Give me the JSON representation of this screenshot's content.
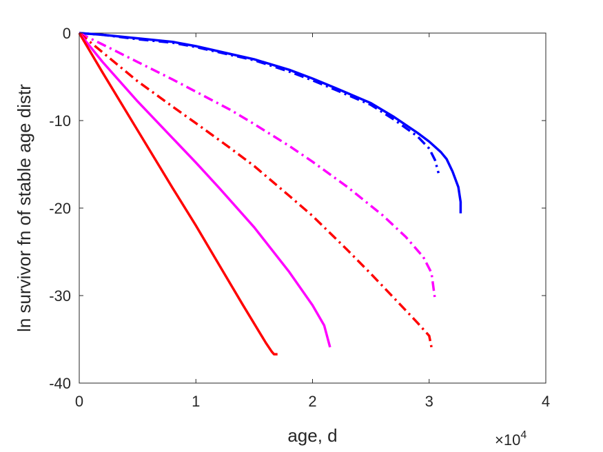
{
  "chart_data": {
    "type": "line",
    "xlabel": "age, d",
    "ylabel": "ln survivor fn of stable age distr",
    "x_multiplier_label": "×10",
    "x_multiplier_exponent": "4",
    "xlim": [
      0,
      4
    ],
    "ylim": [
      -40,
      0
    ],
    "xticks": [
      "0",
      "1",
      "2",
      "3",
      "4"
    ],
    "yticks": [
      "0",
      "-10",
      "-20",
      "-30",
      "-40"
    ],
    "grid": false,
    "legend": "none",
    "series": [
      {
        "color": "#0000ff",
        "style": "solid",
        "x": [
          0,
          0.2,
          0.5,
          0.8,
          1.0,
          1.3,
          1.5,
          1.8,
          2.0,
          2.2,
          2.5,
          2.7,
          2.9,
          3.0,
          3.1,
          3.15,
          3.2,
          3.25,
          3.27,
          3.27
        ],
        "y": [
          0,
          -0.2,
          -0.6,
          -1.0,
          -1.5,
          -2.4,
          -3.0,
          -4.2,
          -5.2,
          -6.3,
          -8.0,
          -9.6,
          -11.4,
          -12.4,
          -13.6,
          -14.4,
          -15.8,
          -17.6,
          -19.3,
          -20.6
        ]
      },
      {
        "color": "#0000ff",
        "style": "dashdot",
        "x": [
          0,
          0.2,
          0.5,
          0.8,
          1.0,
          1.3,
          1.5,
          1.8,
          2.0,
          2.2,
          2.5,
          2.7,
          2.9,
          3.0,
          3.05,
          3.08
        ],
        "y": [
          0,
          -0.2,
          -0.7,
          -1.1,
          -1.6,
          -2.5,
          -3.1,
          -4.4,
          -5.4,
          -6.5,
          -8.2,
          -9.9,
          -11.8,
          -13.2,
          -14.5,
          -16.0
        ]
      },
      {
        "color": "#ff00ff",
        "style": "dashdot",
        "x": [
          0,
          0.2,
          0.5,
          0.8,
          1.0,
          1.3,
          1.5,
          1.8,
          2.0,
          2.3,
          2.6,
          2.8,
          2.95,
          3.02,
          3.05
        ],
        "y": [
          0,
          -1.3,
          -3.3,
          -5.3,
          -6.7,
          -8.8,
          -10.4,
          -12.9,
          -14.7,
          -17.6,
          -20.8,
          -23.3,
          -25.6,
          -27.4,
          -30.4
        ]
      },
      {
        "color": "#ff0000",
        "style": "dashdot",
        "x": [
          0,
          0.2,
          0.5,
          0.8,
          1.0,
          1.3,
          1.5,
          1.8,
          2.0,
          2.3,
          2.5,
          2.7,
          2.9,
          3.0,
          3.02
        ],
        "y": [
          0,
          -2.2,
          -5.5,
          -8.4,
          -10.3,
          -13.2,
          -15.2,
          -18.6,
          -20.9,
          -24.8,
          -27.5,
          -30.3,
          -33.1,
          -34.6,
          -35.9
        ]
      },
      {
        "color": "#ff00ff",
        "style": "solid",
        "x": [
          0,
          0.2,
          0.5,
          0.8,
          1.0,
          1.2,
          1.5,
          1.8,
          2.0,
          2.1,
          2.15
        ],
        "y": [
          0,
          -3.3,
          -7.8,
          -12.0,
          -14.8,
          -17.7,
          -22.2,
          -27.3,
          -31.1,
          -33.4,
          -35.9
        ]
      },
      {
        "color": "#ff0000",
        "style": "solid",
        "x": [
          0,
          0.2,
          0.5,
          0.8,
          1.0,
          1.2,
          1.4,
          1.6,
          1.65,
          1.67,
          1.7
        ],
        "y": [
          0,
          -4.5,
          -11.1,
          -17.7,
          -22.0,
          -26.5,
          -31.0,
          -35.4,
          -36.4,
          -36.7,
          -36.7
        ]
      }
    ]
  }
}
